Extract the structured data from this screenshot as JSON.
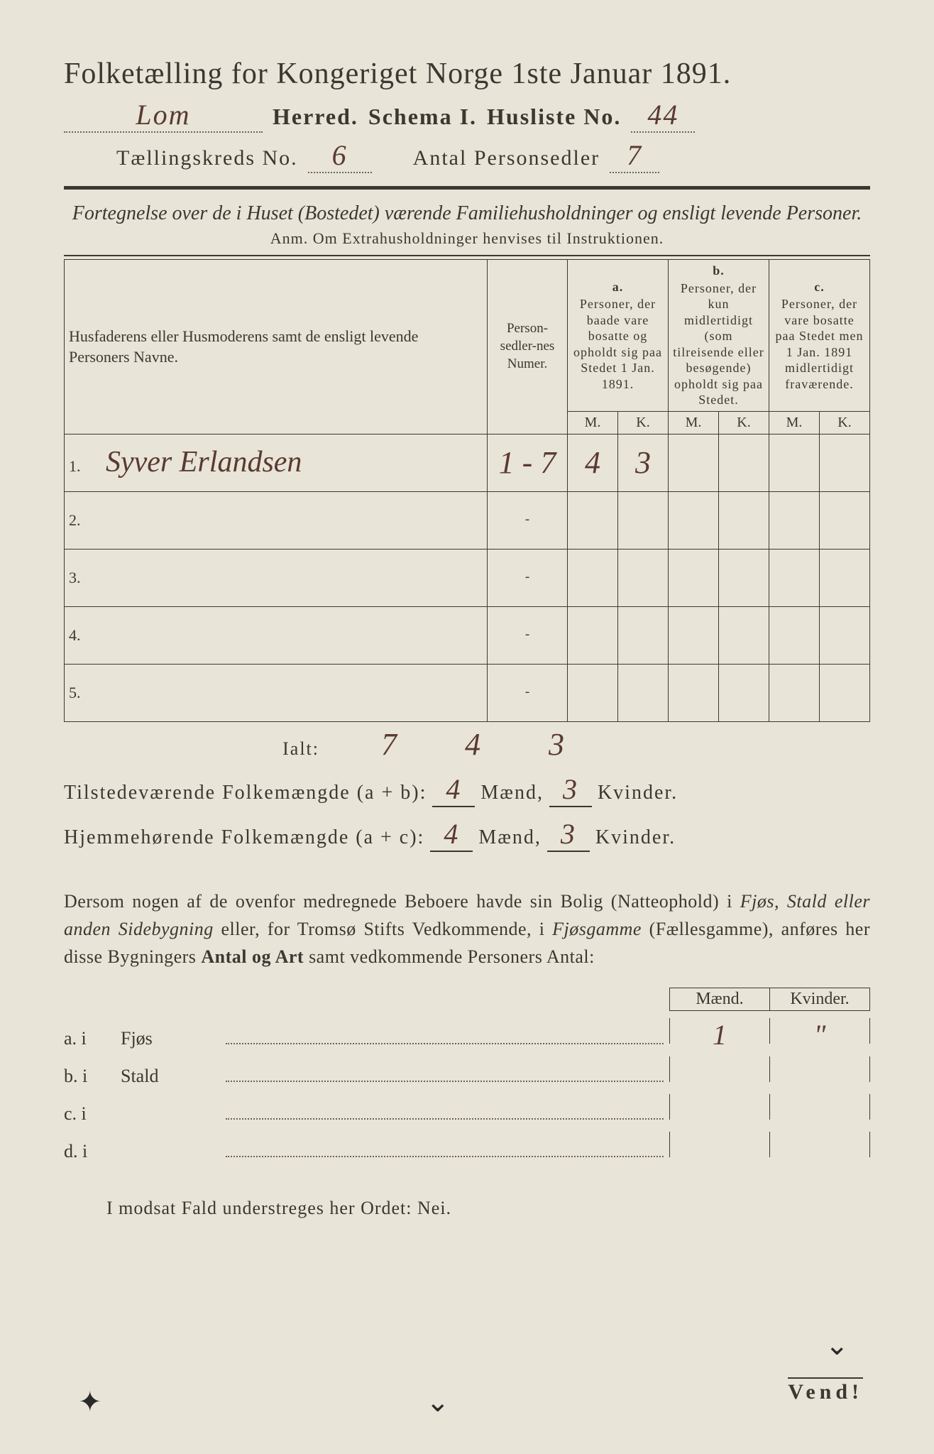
{
  "title": "Folketælling for Kongeriget Norge 1ste Januar 1891.",
  "herred_hand": "Lom",
  "herred_label": "Herred.",
  "schema_label": "Schema I.",
  "husliste_label": "Husliste No.",
  "husliste_hand": "44",
  "kreds_label": "Tællingskreds No.",
  "kreds_hand": "6",
  "antal_label": "Antal Personsedler",
  "antal_hand": "7",
  "subtitle": "Fortegnelse over de i Huset (Bostedet) værende Familiehusholdninger og ensligt levende Personer.",
  "anm": "Anm. Om Extrahusholdninger henvises til Instruktionen.",
  "col_name": "Husfaderens eller Husmoderens samt de ensligt levende Personers Navne.",
  "col_num": "Person-sedler-nes Numer.",
  "col_a_lbl": "a.",
  "col_a": "Personer, der baade vare bosatte og opholdt sig paa Stedet 1 Jan. 1891.",
  "col_b_lbl": "b.",
  "col_b": "Personer, der kun midlertidigt (som tilreisende eller besøgende) opholdt sig paa Stedet.",
  "col_c_lbl": "c.",
  "col_c": "Personer, der vare bosatte paa Stedet men 1 Jan. 1891 midlertidigt fraværende.",
  "mk_m": "M.",
  "mk_k": "K.",
  "rows": [
    {
      "n": "1.",
      "name": "Syver Erlandsen",
      "num": "1 - 7",
      "am": "4",
      "ak": "3",
      "bm": "",
      "bk": "",
      "cm": "",
      "ck": ""
    },
    {
      "n": "2.",
      "name": "",
      "num": "-",
      "am": "",
      "ak": "",
      "bm": "",
      "bk": "",
      "cm": "",
      "ck": ""
    },
    {
      "n": "3.",
      "name": "",
      "num": "-",
      "am": "",
      "ak": "",
      "bm": "",
      "bk": "",
      "cm": "",
      "ck": ""
    },
    {
      "n": "4.",
      "name": "",
      "num": "-",
      "am": "",
      "ak": "",
      "bm": "",
      "bk": "",
      "cm": "",
      "ck": ""
    },
    {
      "n": "5.",
      "name": "",
      "num": "-",
      "am": "",
      "ak": "",
      "bm": "",
      "bk": "",
      "cm": "",
      "ck": ""
    }
  ],
  "ialt_label": "Ialt:",
  "ialt": {
    "num": "7",
    "am": "4",
    "ak": "3"
  },
  "sum1_label": "Tilstedeværende Folkemængde (a + b):",
  "sum1_m": "4",
  "sum1_k": "3",
  "sum2_label": "Hjemmehørende Folkemængde (a + c):",
  "sum2_m": "4",
  "sum2_k": "3",
  "maend": "Mænd,",
  "kvinder": "Kvinder.",
  "para1": "Dersom nogen af de ovenfor medregnede Beboere havde sin Bolig (Natteophold) i ",
  "para1_it1": "Fjøs, Stald eller anden Sidebygning",
  "para1_mid": " eller, for Tromsø Stifts Vedkommende, i ",
  "para1_it2": "Fjøsgamme",
  "para1_paren": " (Fællesgamme), anføres her disse Bygningers ",
  "para1_bold": "Antal og Art",
  "para1_end": " samt vedkommende Personers Antal:",
  "bh_m": "Mænd.",
  "bh_k": "Kvinder.",
  "bldg": [
    {
      "lab": "a. i",
      "name": "Fjøs",
      "m": "1",
      "k": "\""
    },
    {
      "lab": "b. i",
      "name": "Stald",
      "m": "",
      "k": ""
    },
    {
      "lab": "c. i",
      "name": "",
      "m": "",
      "k": ""
    },
    {
      "lab": "d. i",
      "name": "",
      "m": "",
      "k": ""
    }
  ],
  "modsat": "I modsat Fald understreges her Ordet: Nei.",
  "vend": "Vend!",
  "colors": {
    "paper": "#e8e4d8",
    "ink": "#3a3830",
    "hand": "#5a3a30"
  }
}
